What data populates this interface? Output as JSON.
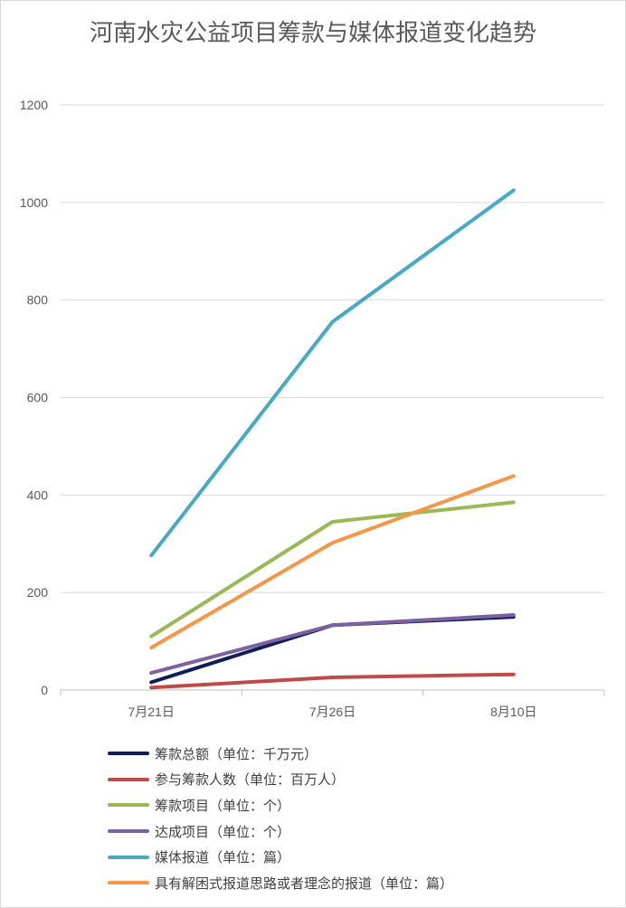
{
  "chart_data": {
    "type": "line",
    "title": "河南水灾公益项目筹款与媒体报道变化趋势",
    "categories": [
      "7月21日",
      "7月26日",
      "8月10日"
    ],
    "ylim": [
      0,
      1200
    ],
    "yticks": [
      0,
      200,
      400,
      600,
      800,
      1000,
      1200
    ],
    "grid": true,
    "legend_position": "bottom",
    "series": [
      {
        "name": "筹款总额（单位：千万元）",
        "color": "#0e1e5b",
        "values": [
          16,
          133,
          150
        ]
      },
      {
        "name": "参与筹款人数（单位：百万人）",
        "color": "#be4b48",
        "values": [
          5,
          26,
          32
        ]
      },
      {
        "name": "筹款项目（单位：个）",
        "color": "#98b954",
        "values": [
          110,
          345,
          385
        ]
      },
      {
        "name": "达成项目（单位：个）",
        "color": "#7d60a0",
        "values": [
          35,
          133,
          154
        ]
      },
      {
        "name": "媒体报道（单位：篇）",
        "color": "#46aac4",
        "values": [
          276,
          755,
          1025
        ]
      },
      {
        "name": "具有解困式报道思路或者理念的报道（单位：篇）",
        "color": "#f79646",
        "values": [
          87,
          302,
          439
        ]
      }
    ]
  }
}
